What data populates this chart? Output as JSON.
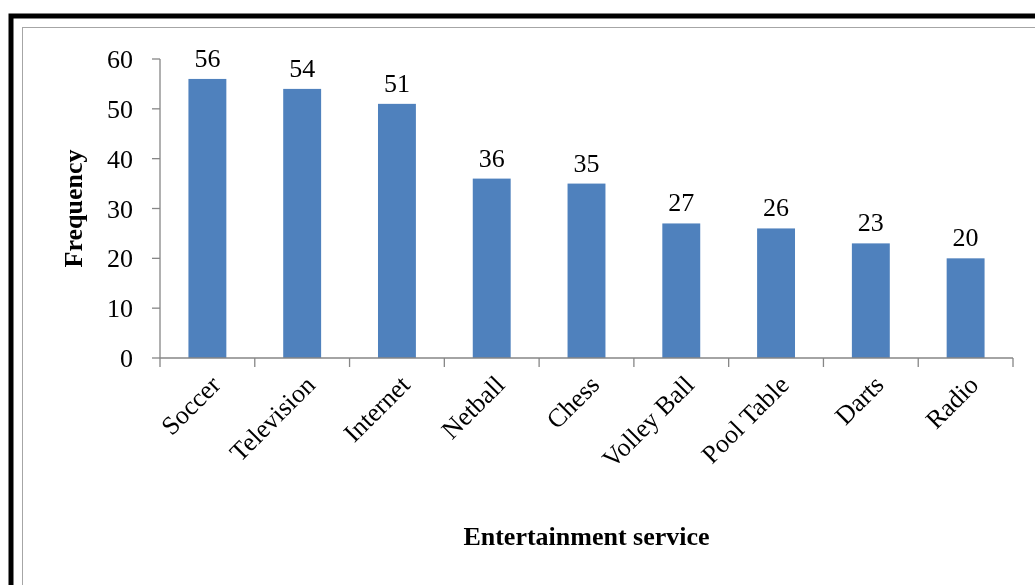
{
  "chart_data": {
    "type": "bar",
    "categories": [
      "Soccer",
      "Television",
      "Internet",
      "Netball",
      "Chess",
      "Volley Ball",
      "Pool Table",
      "Darts",
      "Radio"
    ],
    "values": [
      56,
      54,
      51,
      36,
      35,
      27,
      26,
      23,
      20
    ],
    "color": "#4f81bd",
    "xlabel": "Entertainment service",
    "ylabel": "Frequency",
    "ylim": [
      0,
      60
    ],
    "yticks": [
      0,
      10,
      20,
      30,
      40,
      50,
      60
    ],
    "data_labels": true,
    "grid": false,
    "legend": false
  }
}
